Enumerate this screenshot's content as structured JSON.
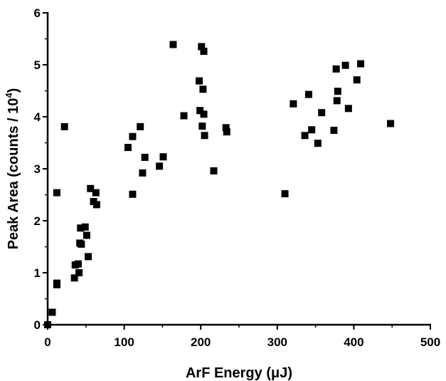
{
  "chart_data": {
    "type": "scatter",
    "xlabel": "ArF Energy (μJ)",
    "ylabel_main": "Peak Area (counts / 10",
    "ylabel_sup": "4",
    "ylabel_close": ")",
    "xlim": [
      0,
      500
    ],
    "ylim": [
      0,
      6
    ],
    "xticks": [
      0,
      100,
      200,
      300,
      400,
      500
    ],
    "yticks": [
      0,
      1,
      2,
      3,
      4,
      5,
      6
    ],
    "grid": false,
    "marker": "square",
    "color": "#000000",
    "points": [
      [
        0,
        0
      ],
      [
        6,
        0.24
      ],
      [
        12,
        2.54
      ],
      [
        12,
        0.8
      ],
      [
        12,
        0.77
      ],
      [
        22,
        3.81
      ],
      [
        35,
        0.9
      ],
      [
        36,
        1.15
      ],
      [
        40,
        1.17
      ],
      [
        41,
        1.0
      ],
      [
        42,
        1.57
      ],
      [
        43,
        1.86
      ],
      [
        44,
        1.55
      ],
      [
        49,
        1.88
      ],
      [
        51,
        1.72
      ],
      [
        53,
        1.31
      ],
      [
        56,
        2.62
      ],
      [
        60,
        2.37
      ],
      [
        63,
        2.54
      ],
      [
        64,
        2.31
      ],
      [
        105,
        3.41
      ],
      [
        111,
        3.62
      ],
      [
        111,
        2.51
      ],
      [
        121,
        3.81
      ],
      [
        124,
        2.92
      ],
      [
        127,
        3.22
      ],
      [
        146,
        3.05
      ],
      [
        151,
        3.23
      ],
      [
        164,
        5.39
      ],
      [
        178,
        4.02
      ],
      [
        198,
        4.69
      ],
      [
        199,
        4.12
      ],
      [
        201,
        5.35
      ],
      [
        202,
        3.82
      ],
      [
        203,
        4.53
      ],
      [
        204,
        4.05
      ],
      [
        204,
        5.26
      ],
      [
        205,
        3.64
      ],
      [
        217,
        2.96
      ],
      [
        233,
        3.79
      ],
      [
        234,
        3.71
      ],
      [
        310,
        2.52
      ],
      [
        321,
        4.25
      ],
      [
        336,
        3.64
      ],
      [
        341,
        4.43
      ],
      [
        345,
        3.75
      ],
      [
        353,
        3.49
      ],
      [
        358,
        4.08
      ],
      [
        374,
        3.74
      ],
      [
        377,
        4.92
      ],
      [
        378,
        4.31
      ],
      [
        379,
        4.49
      ],
      [
        389,
        4.99
      ],
      [
        393,
        4.16
      ],
      [
        404,
        4.71
      ],
      [
        409,
        5.02
      ],
      [
        448,
        3.87
      ]
    ]
  }
}
